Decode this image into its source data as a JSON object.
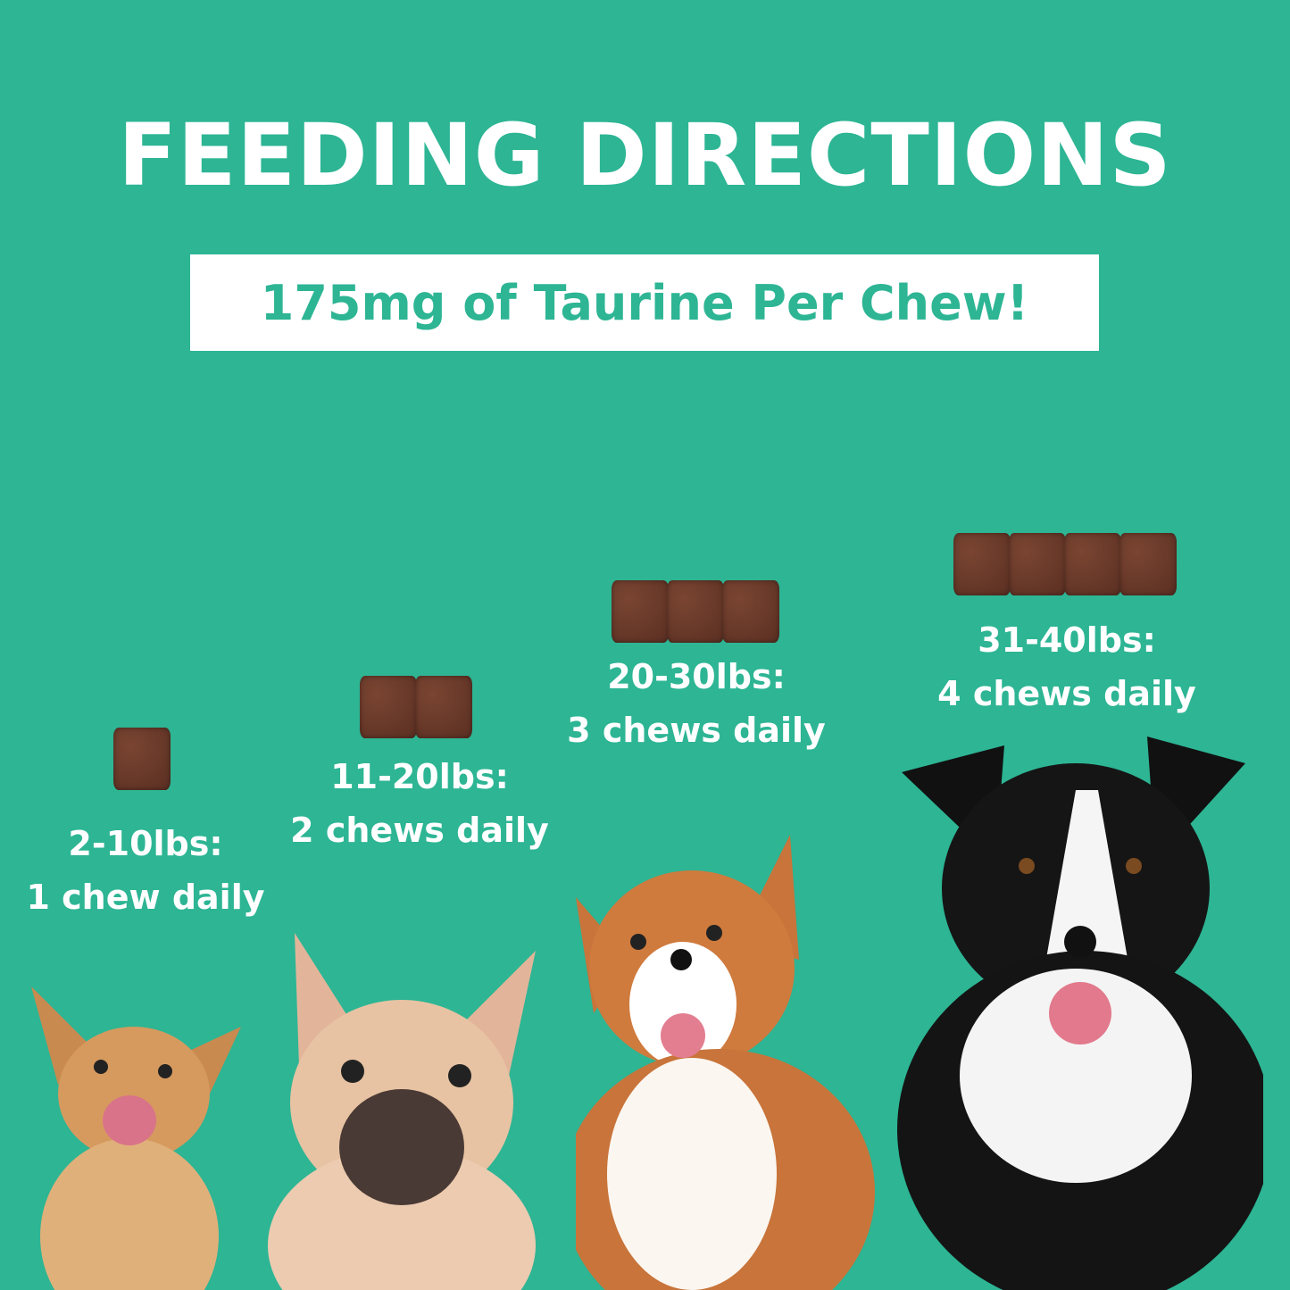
{
  "title": "FEEDING DIRECTIONS",
  "subtitle": "175mg of Taurine Per Chew!",
  "colors": {
    "background": "#2db594",
    "chew": "#6b3a2a",
    "text": "#ffffff"
  },
  "tiers": [
    {
      "weight": "2-10lbs:",
      "dose": "1 chew daily",
      "chews": 1,
      "dog": "chihuahua"
    },
    {
      "weight": "11-20lbs:",
      "dose": "2 chews daily",
      "chews": 2,
      "dog": "french-bulldog"
    },
    {
      "weight": "20-30lbs:",
      "dose": "3 chews daily",
      "chews": 3,
      "dog": "corgi"
    },
    {
      "weight": "31-40lbs:",
      "dose": "4 chews daily",
      "chews": 4,
      "dog": "border-collie"
    }
  ]
}
